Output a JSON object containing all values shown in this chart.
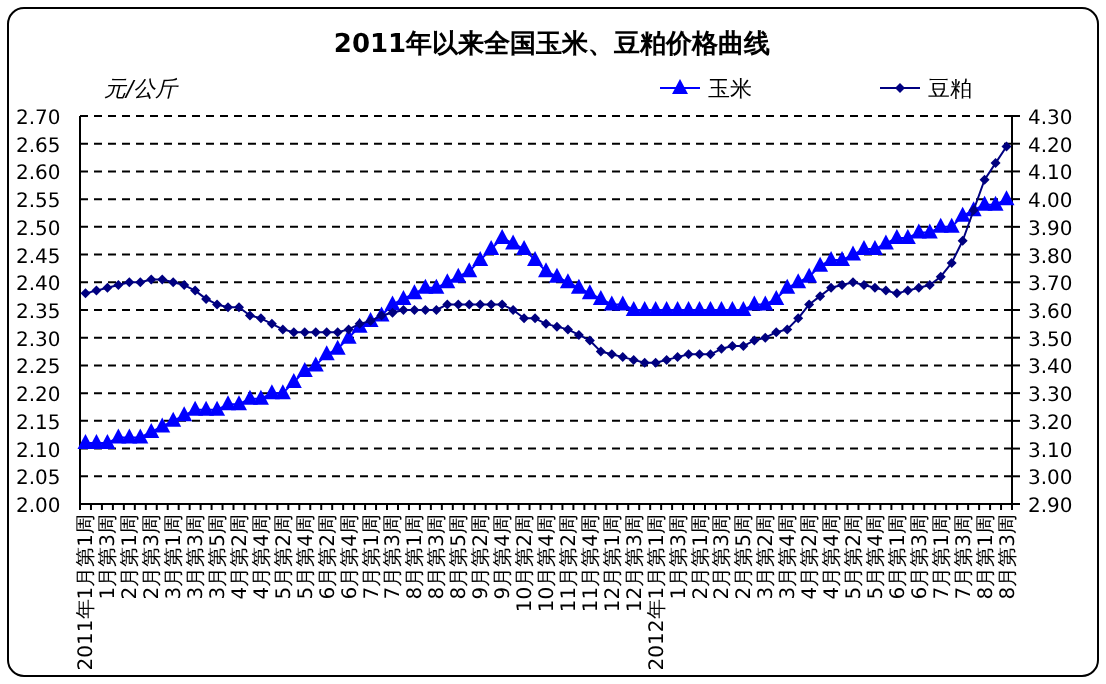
{
  "chart_data": {
    "type": "line",
    "title": "2011年以来全国玉米、豆粕价格曲线",
    "ylabel": "元/公斤",
    "categories": [
      "2011年1月第1周",
      null,
      "1月第3周",
      null,
      "2月第1周",
      null,
      "2月第3周",
      null,
      "3月第1周",
      null,
      "3月第3周",
      null,
      "3月第5周",
      null,
      "4月第2周",
      null,
      "4月第4周",
      null,
      "5月第2周",
      null,
      "5月第4周",
      null,
      "6月第2周",
      null,
      "6月第4周",
      null,
      "7月第1周",
      null,
      "7月第3周",
      null,
      "8月第1周",
      null,
      "8月第3周",
      null,
      "8月第5周",
      null,
      "9月第2周",
      null,
      "9月第4周",
      null,
      "10月第2周",
      null,
      "10月第4周",
      null,
      "11月第2周",
      null,
      "11月第4周",
      null,
      "12月第1周",
      null,
      "12月第3周",
      null,
      "2012年1月第1周",
      null,
      "1月第3周",
      null,
      "2月第1周",
      null,
      "2月第3周",
      null,
      "2月第5周",
      null,
      "3月第2周",
      null,
      "3月第4周",
      null,
      "4月第2周",
      null,
      "4月第4周",
      null,
      "5月第2周",
      null,
      "5月第4周",
      null,
      "6月第1周",
      null,
      "6月第3周",
      null,
      "7月第1周",
      null,
      "7月第3周",
      null,
      "8月第1周",
      null,
      "8月第3周"
    ],
    "series": [
      {
        "name": "玉米",
        "color": "#0000ff",
        "marker": "triangle",
        "axis": "y",
        "values": [
          2.11,
          2.11,
          2.11,
          2.12,
          2.12,
          2.12,
          2.13,
          2.14,
          2.15,
          2.16,
          2.17,
          2.17,
          2.17,
          2.18,
          2.18,
          2.19,
          2.19,
          2.2,
          2.2,
          2.22,
          2.24,
          2.25,
          2.27,
          2.28,
          2.3,
          2.32,
          2.33,
          2.34,
          2.36,
          2.37,
          2.38,
          2.39,
          2.39,
          2.4,
          2.41,
          2.42,
          2.44,
          2.46,
          2.48,
          2.47,
          2.46,
          2.44,
          2.42,
          2.41,
          2.4,
          2.39,
          2.38,
          2.37,
          2.36,
          2.36,
          2.35,
          2.35,
          2.35,
          2.35,
          2.35,
          2.35,
          2.35,
          2.35,
          2.35,
          2.35,
          2.35,
          2.36,
          2.36,
          2.37,
          2.39,
          2.4,
          2.41,
          2.43,
          2.44,
          2.44,
          2.45,
          2.46,
          2.46,
          2.47,
          2.48,
          2.48,
          2.49,
          2.49,
          2.5,
          2.5,
          2.52,
          2.53,
          2.54,
          2.54,
          2.55
        ]
      },
      {
        "name": "豆粕",
        "color": "#000080",
        "marker": "diamond",
        "axis": "y2",
        "values": [
          3.66,
          3.67,
          3.68,
          3.69,
          3.7,
          3.7,
          3.71,
          3.71,
          3.7,
          3.69,
          3.67,
          3.64,
          3.62,
          3.61,
          3.61,
          3.58,
          3.57,
          3.55,
          3.53,
          3.52,
          3.52,
          3.52,
          3.52,
          3.52,
          3.53,
          3.55,
          3.56,
          3.58,
          3.59,
          3.6,
          3.6,
          3.6,
          3.6,
          3.62,
          3.62,
          3.62,
          3.62,
          3.62,
          3.62,
          3.6,
          3.57,
          3.57,
          3.55,
          3.54,
          3.53,
          3.51,
          3.49,
          3.45,
          3.44,
          3.43,
          3.42,
          3.41,
          3.41,
          3.42,
          3.43,
          3.44,
          3.44,
          3.44,
          3.46,
          3.47,
          3.47,
          3.49,
          3.5,
          3.52,
          3.53,
          3.57,
          3.62,
          3.65,
          3.68,
          3.69,
          3.7,
          3.69,
          3.68,
          3.67,
          3.66,
          3.67,
          3.68,
          3.69,
          3.72,
          3.77,
          3.85,
          3.96,
          4.07,
          4.13,
          4.19
        ]
      }
    ],
    "ylim": [
      2.0,
      2.7
    ],
    "yticks": [
      {
        "value": 2.0,
        "label": "2.00"
      },
      {
        "value": 2.05,
        "label": "2.05"
      },
      {
        "value": 2.1,
        "label": "2.10"
      },
      {
        "value": 2.15,
        "label": "2.15"
      },
      {
        "value": 2.2,
        "label": "2.20"
      },
      {
        "value": 2.25,
        "label": "2.25"
      },
      {
        "value": 2.3,
        "label": "2.30"
      },
      {
        "value": 2.35,
        "label": "2.35"
      },
      {
        "value": 2.4,
        "label": "2.40"
      },
      {
        "value": 2.45,
        "label": "2.45"
      },
      {
        "value": 2.5,
        "label": "2.50"
      },
      {
        "value": 2.55,
        "label": "2.55"
      },
      {
        "value": 2.6,
        "label": "2.60"
      },
      {
        "value": 2.65,
        "label": "2.65"
      },
      {
        "value": 2.7,
        "label": "2.70"
      }
    ],
    "y2lim": [
      2.9,
      4.3
    ],
    "y2ticks": [
      {
        "value": 2.9,
        "label": "2.90"
      },
      {
        "value": 3.0,
        "label": "3.00"
      },
      {
        "value": 3.1,
        "label": "3.10"
      },
      {
        "value": 3.2,
        "label": "3.20"
      },
      {
        "value": 3.3,
        "label": "3.30"
      },
      {
        "value": 3.4,
        "label": "3.40"
      },
      {
        "value": 3.5,
        "label": "3.50"
      },
      {
        "value": 3.6,
        "label": "3.60"
      },
      {
        "value": 3.7,
        "label": "3.70"
      },
      {
        "value": 3.8,
        "label": "3.80"
      },
      {
        "value": 3.9,
        "label": "3.90"
      },
      {
        "value": 4.0,
        "label": "4.00"
      },
      {
        "value": 4.1,
        "label": "4.10"
      },
      {
        "value": 4.2,
        "label": "4.20"
      },
      {
        "value": 4.3,
        "label": "4.30"
      }
    ],
    "grid": "y",
    "legend": "top right"
  }
}
